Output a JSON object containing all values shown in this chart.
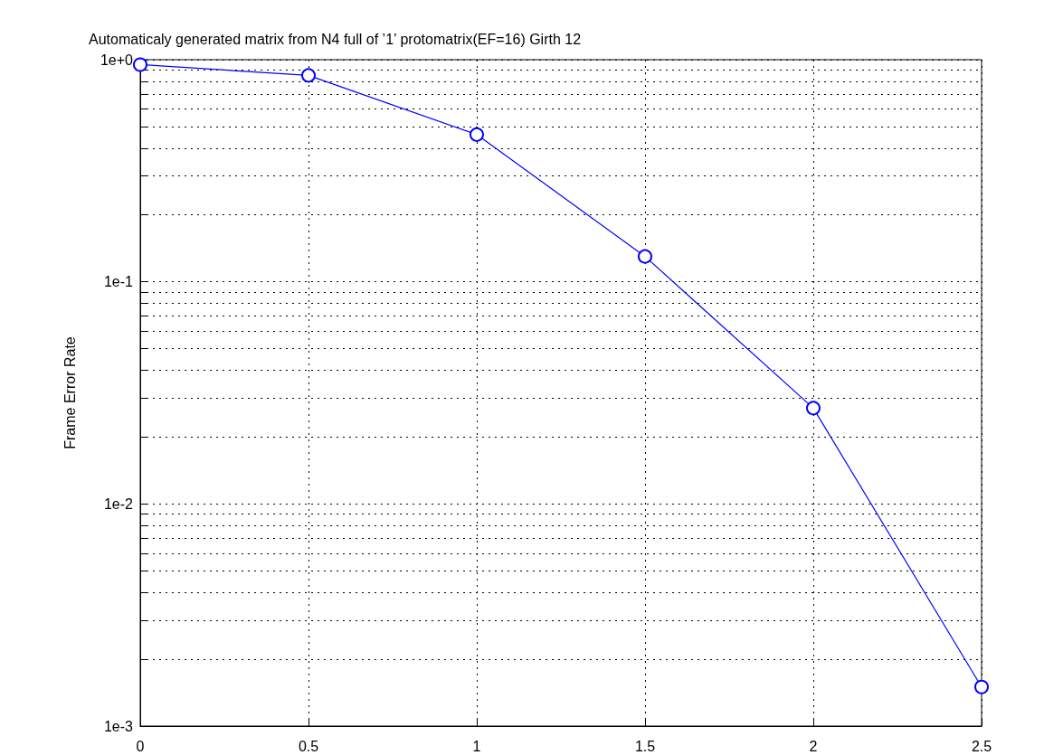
{
  "chart_data": {
    "type": "line",
    "title": "Automaticaly generated matrix from N4 full of ’1’ protomatrix(EF=16) Girth 12",
    "ylabel": "Frame Error Rate",
    "x": [
      0,
      0.5,
      1,
      1.5,
      2,
      2.5
    ],
    "series": [
      {
        "color": "#0000ff",
        "values": [
          0.95,
          0.85,
          0.46,
          0.13,
          0.027,
          0.0015
        ]
      }
    ],
    "xlim": [
      0,
      2.5
    ],
    "xticks": [
      0,
      0.5,
      1,
      1.5,
      2,
      2.5
    ],
    "ylim": [
      0.001,
      1
    ],
    "yticks": [
      {
        "value": 0.001,
        "label": "1e-3"
      },
      {
        "value": 0.002,
        "label": null
      },
      {
        "value": 0.003,
        "label": null
      },
      {
        "value": 0.004,
        "label": null
      },
      {
        "value": 0.005,
        "label": null
      },
      {
        "value": 0.006,
        "label": null
      },
      {
        "value": 0.007,
        "label": null
      },
      {
        "value": 0.008,
        "label": null
      },
      {
        "value": 0.009,
        "label": null
      },
      {
        "value": 0.01,
        "label": "1e-2"
      },
      {
        "value": 0.02,
        "label": null
      },
      {
        "value": 0.03,
        "label": null
      },
      {
        "value": 0.04,
        "label": null
      },
      {
        "value": 0.05,
        "label": null
      },
      {
        "value": 0.06,
        "label": null
      },
      {
        "value": 0.07,
        "label": null
      },
      {
        "value": 0.08,
        "label": null
      },
      {
        "value": 0.09,
        "label": null
      },
      {
        "value": 0.1,
        "label": "1e-1"
      },
      {
        "value": 0.2,
        "label": null
      },
      {
        "value": 0.3,
        "label": null
      },
      {
        "value": 0.4,
        "label": null
      },
      {
        "value": 0.5,
        "label": null
      },
      {
        "value": 0.6,
        "label": null
      },
      {
        "value": 0.7,
        "label": null
      },
      {
        "value": 0.8,
        "label": null
      },
      {
        "value": 0.9,
        "label": null
      },
      {
        "value": 1,
        "label": "1e+0"
      }
    ],
    "log": "y",
    "grid": true,
    "marker": "circle",
    "line_style": "solid"
  }
}
